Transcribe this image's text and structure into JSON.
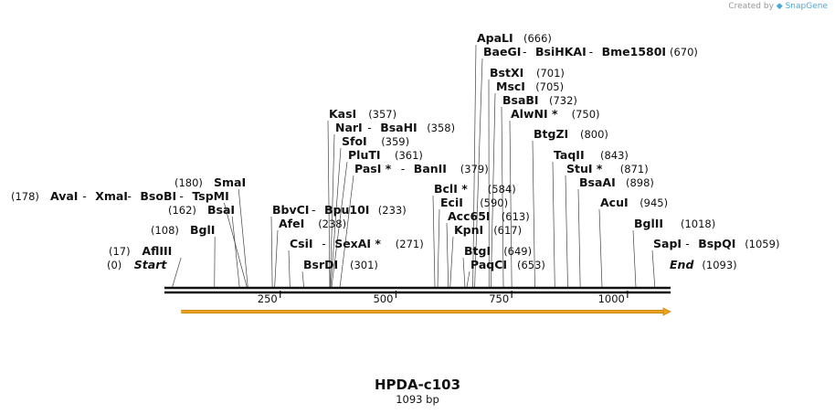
{
  "credit": {
    "prefix": "Created by",
    "brand": "SnapGene"
  },
  "plasmid": {
    "name": "HPDA-c103",
    "length_label": "1093 bp",
    "length": 1093
  },
  "axis": {
    "ticks": [
      250,
      500,
      750,
      1000
    ],
    "range": [
      0,
      1093
    ]
  },
  "feature": {
    "type": "arrow",
    "start": 36,
    "end": 1093,
    "color": "#f0a020"
  },
  "sites": [
    {
      "id": "start",
      "enzymes": [
        "Start"
      ],
      "pos": 0,
      "label": "(0)",
      "italic": true
    },
    {
      "id": "afliii",
      "enzymes": [
        "AflIII"
      ],
      "pos": 17,
      "label": "(17)"
    },
    {
      "id": "bgli",
      "enzymes": [
        "BglI"
      ],
      "pos": 108,
      "label": "(108)"
    },
    {
      "id": "bsai",
      "enzymes": [
        "BsaI"
      ],
      "pos": 162,
      "label": "(162)"
    },
    {
      "id": "avai",
      "enzymes": [
        "AvaI",
        "XmaI",
        "BsoBI",
        "TspMI"
      ],
      "pos": 178,
      "label": "(178)"
    },
    {
      "id": "smai",
      "enzymes": [
        "SmaI"
      ],
      "pos": 180,
      "label": "(180)"
    },
    {
      "id": "bbvci",
      "enzymes": [
        "BbvCI",
        "Bpu10I"
      ],
      "pos": 233,
      "label": "(233)"
    },
    {
      "id": "afei",
      "enzymes": [
        "AfeI"
      ],
      "pos": 238,
      "label": "(238)"
    },
    {
      "id": "csii",
      "enzymes": [
        "CsiI",
        "SexAI *"
      ],
      "pos": 271,
      "label": "(271)"
    },
    {
      "id": "bsrdi",
      "enzymes": [
        "BsrDI"
      ],
      "pos": 301,
      "label": "(301)"
    },
    {
      "id": "kasi",
      "enzymes": [
        "KasI"
      ],
      "pos": 357,
      "label": "(357)"
    },
    {
      "id": "nari",
      "enzymes": [
        "NarI",
        "BsaHI"
      ],
      "pos": 358,
      "label": "(358)"
    },
    {
      "id": "sfoi",
      "enzymes": [
        "SfoI"
      ],
      "pos": 359,
      "label": "(359)"
    },
    {
      "id": "pluti",
      "enzymes": [
        "PluTI"
      ],
      "pos": 361,
      "label": "(361)"
    },
    {
      "id": "pasi",
      "enzymes": [
        "PasI *",
        "BanII"
      ],
      "pos": 379,
      "label": "(379)"
    },
    {
      "id": "bcli",
      "enzymes": [
        "BclI *"
      ],
      "pos": 584,
      "label": "(584)"
    },
    {
      "id": "ecii",
      "enzymes": [
        "EciI"
      ],
      "pos": 590,
      "label": "(590)"
    },
    {
      "id": "acc65i",
      "enzymes": [
        "Acc65I"
      ],
      "pos": 613,
      "label": "(613)"
    },
    {
      "id": "kpni",
      "enzymes": [
        "KpnI"
      ],
      "pos": 617,
      "label": "(617)"
    },
    {
      "id": "btgi",
      "enzymes": [
        "BtgI"
      ],
      "pos": 649,
      "label": "(649)"
    },
    {
      "id": "paqci",
      "enzymes": [
        "PaqCI"
      ],
      "pos": 653,
      "label": "(653)"
    },
    {
      "id": "apali",
      "enzymes": [
        "ApaLI"
      ],
      "pos": 666,
      "label": "(666)"
    },
    {
      "id": "baegi",
      "enzymes": [
        "BaeGI",
        "BsiHKAI",
        "Bme1580I"
      ],
      "pos": 670,
      "label": "(670)"
    },
    {
      "id": "bstxi",
      "enzymes": [
        "BstXI"
      ],
      "pos": 701,
      "label": "(701)"
    },
    {
      "id": "msci",
      "enzymes": [
        "MscI"
      ],
      "pos": 705,
      "label": "(705)"
    },
    {
      "id": "bsabi",
      "enzymes": [
        "BsaBI"
      ],
      "pos": 732,
      "label": "(732)"
    },
    {
      "id": "alwni",
      "enzymes": [
        "AlwNI *"
      ],
      "pos": 750,
      "label": "(750)"
    },
    {
      "id": "btgzi",
      "enzymes": [
        "BtgZI"
      ],
      "pos": 800,
      "label": "(800)"
    },
    {
      "id": "taqii",
      "enzymes": [
        "TaqII"
      ],
      "pos": 843,
      "label": "(843)"
    },
    {
      "id": "stui",
      "enzymes": [
        "StuI *"
      ],
      "pos": 871,
      "label": "(871)"
    },
    {
      "id": "bsaai",
      "enzymes": [
        "BsaAI"
      ],
      "pos": 898,
      "label": "(898)"
    },
    {
      "id": "acui",
      "enzymes": [
        "AcuI"
      ],
      "pos": 945,
      "label": "(945)"
    },
    {
      "id": "bglii",
      "enzymes": [
        "BglII"
      ],
      "pos": 1018,
      "label": "(1018)"
    },
    {
      "id": "sapi",
      "enzymes": [
        "SapI",
        "BspQI"
      ],
      "pos": 1059,
      "label": "(1059)"
    },
    {
      "id": "end",
      "enzymes": [
        "End"
      ],
      "pos": 1093,
      "label": "(1093)",
      "italic": true
    }
  ]
}
